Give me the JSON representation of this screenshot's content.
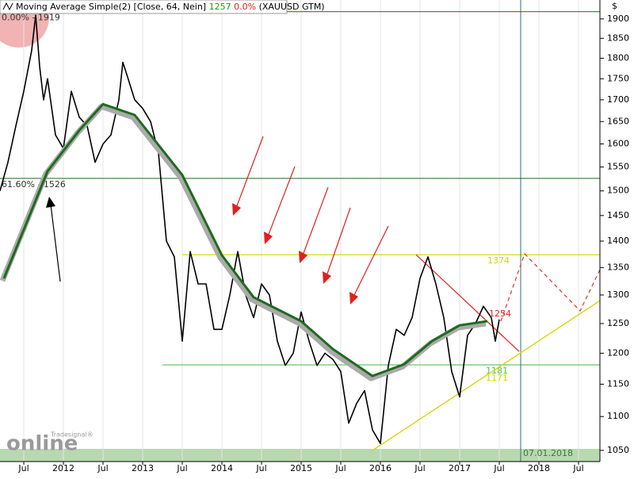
{
  "chart_data": {
    "type": "line",
    "title": "Moving Average Simple(2) [Close, 64, Nein]",
    "last_value": "1257",
    "change": "0.0%",
    "symbol": "(XAUUSD GTM)",
    "y_axis_label": "$",
    "log_scale": true,
    "grid": true,
    "xlim": [
      2011.2,
      2018.77
    ],
    "ylim": [
      1034,
      1950
    ],
    "xticks": [
      {
        "value": 2011.5,
        "label": "Jul"
      },
      2012,
      {
        "value": 2012.5,
        "label": "Jul"
      },
      2013,
      {
        "value": 2013.5,
        "label": "Jul"
      },
      2014,
      {
        "value": 2014.5,
        "label": "Jul"
      },
      2015,
      {
        "value": 2015.5,
        "label": "Jul"
      },
      2016,
      {
        "value": 2016.5,
        "label": "Jul"
      },
      2017,
      {
        "value": 2017.5,
        "label": "Jul"
      },
      2018,
      {
        "value": 2018.5,
        "label": "Jul"
      }
    ],
    "yticks": [
      1050,
      1100,
      1150,
      1200,
      1250,
      1300,
      1350,
      1400,
      1450,
      1500,
      1550,
      1600,
      1650,
      1700,
      1750,
      1800,
      1850,
      1900
    ],
    "series": [
      {
        "name": "XAUUSD",
        "color": "#000000",
        "x": [
          2011.2,
          2011.3,
          2011.4,
          2011.5,
          2011.6,
          2011.65,
          2011.7,
          2011.75,
          2011.8,
          2011.9,
          2012.0,
          2012.1,
          2012.2,
          2012.3,
          2012.4,
          2012.5,
          2012.6,
          2012.7,
          2012.75,
          2012.8,
          2012.9,
          2013.0,
          2013.1,
          2013.2,
          2013.3,
          2013.4,
          2013.5,
          2013.6,
          2013.7,
          2013.8,
          2013.9,
          2014.0,
          2014.1,
          2014.2,
          2014.3,
          2014.4,
          2014.5,
          2014.6,
          2014.7,
          2014.8,
          2014.9,
          2015.0,
          2015.1,
          2015.2,
          2015.3,
          2015.4,
          2015.5,
          2015.6,
          2015.7,
          2015.8,
          2015.9,
          2016.0,
          2016.1,
          2016.2,
          2016.3,
          2016.4,
          2016.5,
          2016.6,
          2016.7,
          2016.8,
          2016.9,
          2017.0,
          2017.1,
          2017.2,
          2017.3,
          2017.4,
          2017.45,
          2017.5
        ],
        "values": [
          1500,
          1560,
          1640,
          1720,
          1820,
          1910,
          1780,
          1700,
          1750,
          1620,
          1590,
          1720,
          1660,
          1640,
          1560,
          1600,
          1620,
          1700,
          1790,
          1760,
          1700,
          1680,
          1650,
          1580,
          1400,
          1370,
          1220,
          1380,
          1320,
          1320,
          1240,
          1240,
          1300,
          1380,
          1300,
          1260,
          1320,
          1300,
          1220,
          1180,
          1200,
          1270,
          1220,
          1180,
          1200,
          1190,
          1170,
          1090,
          1120,
          1140,
          1080,
          1060,
          1180,
          1240,
          1230,
          1260,
          1330,
          1370,
          1320,
          1260,
          1170,
          1130,
          1230,
          1250,
          1280,
          1260,
          1220,
          1257
        ]
      },
      {
        "name": "Moving Average Simple",
        "color": "#1e6b1e",
        "end_label": "1254",
        "x": [
          2011.25,
          2011.8,
          2012.2,
          2012.5,
          2012.9,
          2013.5,
          2014.0,
          2014.4,
          2015.0,
          2015.4,
          2015.9,
          2016.3,
          2016.65,
          2017.0,
          2017.35
        ],
        "values": [
          1330,
          1541,
          1630,
          1690,
          1665,
          1533,
          1373,
          1296,
          1254,
          1207,
          1163,
          1182,
          1220,
          1247,
          1254
        ]
      }
    ],
    "levels": [
      {
        "value": 1919,
        "label": "0.00% - 1919",
        "color": "#2e7d32",
        "from": 2011.2
      },
      {
        "value": 1526,
        "label": "61.60% - 1526",
        "color": "#2e7d32",
        "from": 2011.2
      },
      {
        "value": 1374,
        "label": "1374",
        "color": "#d4d400",
        "from": 2013.5
      },
      {
        "value": 1181,
        "label": "1181",
        "color": "#55c055",
        "from": 2013.25
      }
    ],
    "trendlines": [
      {
        "from": [
          2015.9,
          1050
        ],
        "to": [
          2018.77,
          1290
        ],
        "color": "#d4d400",
        "label": "1171"
      },
      {
        "from": [
          2016.45,
          1374
        ],
        "to": [
          2017.75,
          1203
        ],
        "color": "#e03030"
      }
    ],
    "date_marker": {
      "x": 2017.77,
      "label": "07.01.2018"
    },
    "watermark": "online",
    "watermark_brand": "Tradesignal®"
  }
}
